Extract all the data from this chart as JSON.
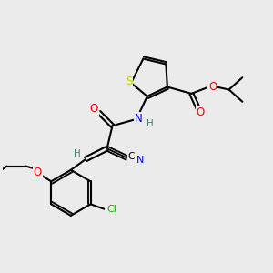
{
  "background_color": "#ebebeb",
  "atom_colors": {
    "S": "#cccc00",
    "O": "#ff0000",
    "N": "#0000ff",
    "Cl": "#00bb00",
    "C": "#000000",
    "H": "#408080"
  },
  "figure_size": [
    3.0,
    3.0
  ],
  "dpi": 100
}
